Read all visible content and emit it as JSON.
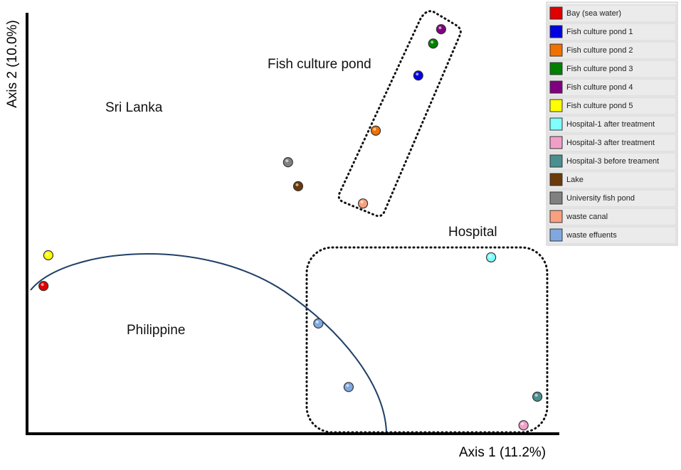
{
  "chart_data": {
    "type": "scatter",
    "x_label": "Axis 1 (11.2%)",
    "y_label": "Axis 2 (10.0%)",
    "xlim": [
      0,
      100
    ],
    "ylim": [
      0,
      100
    ],
    "grid": false,
    "legend": "right",
    "annotations": [
      "Fish culture pond",
      "Sri Lanka",
      "Hospital",
      "Philippine"
    ],
    "series": [
      {
        "name": "Bay (sea water)",
        "color": "#e00000",
        "x": [
          3.1
        ],
        "y": [
          35.1
        ]
      },
      {
        "name": "Fish culture pond 1",
        "color": "#0000e0",
        "x": [
          73.6
        ],
        "y": [
          85.1
        ]
      },
      {
        "name": "Fish culture pond 2",
        "color": "#f07000",
        "x": [
          65.6
        ],
        "y": [
          72.0
        ]
      },
      {
        "name": "Fish culture pond 3",
        "color": "#008000",
        "x": [
          76.4
        ],
        "y": [
          92.7
        ]
      },
      {
        "name": "Fish culture pond 4",
        "color": "#800080",
        "x": [
          77.9
        ],
        "y": [
          96.1
        ]
      },
      {
        "name": "Fish culture pond 5",
        "color": "#ffff00",
        "x": [
          4.0
        ],
        "y": [
          42.4
        ]
      },
      {
        "name": "Hospital-1 after treatment",
        "color": "#80ffff",
        "x": [
          87.3
        ],
        "y": [
          41.9
        ]
      },
      {
        "name": "Hospital-3 after treatment",
        "color": "#f0a0c8",
        "x": [
          93.4
        ],
        "y": [
          2.0
        ]
      },
      {
        "name": "Hospital-3 before treament",
        "color": "#4a9090",
        "x": [
          96.0
        ],
        "y": [
          8.8
        ]
      },
      {
        "name": "Lake",
        "color": "#6b3a0a",
        "x": [
          51.0
        ],
        "y": [
          58.8
        ]
      },
      {
        "name": "University fish pond",
        "color": "#808080",
        "x": [
          49.1
        ],
        "y": [
          64.5
        ]
      },
      {
        "name": "waste canal",
        "color": "#f8a080",
        "x": [
          63.2
        ],
        "y": [
          54.7
        ]
      },
      {
        "name": "waste effuents",
        "color": "#80a8e0",
        "x": [
          54.8,
          60.5
        ],
        "y": [
          26.2,
          11.1
        ]
      }
    ]
  }
}
